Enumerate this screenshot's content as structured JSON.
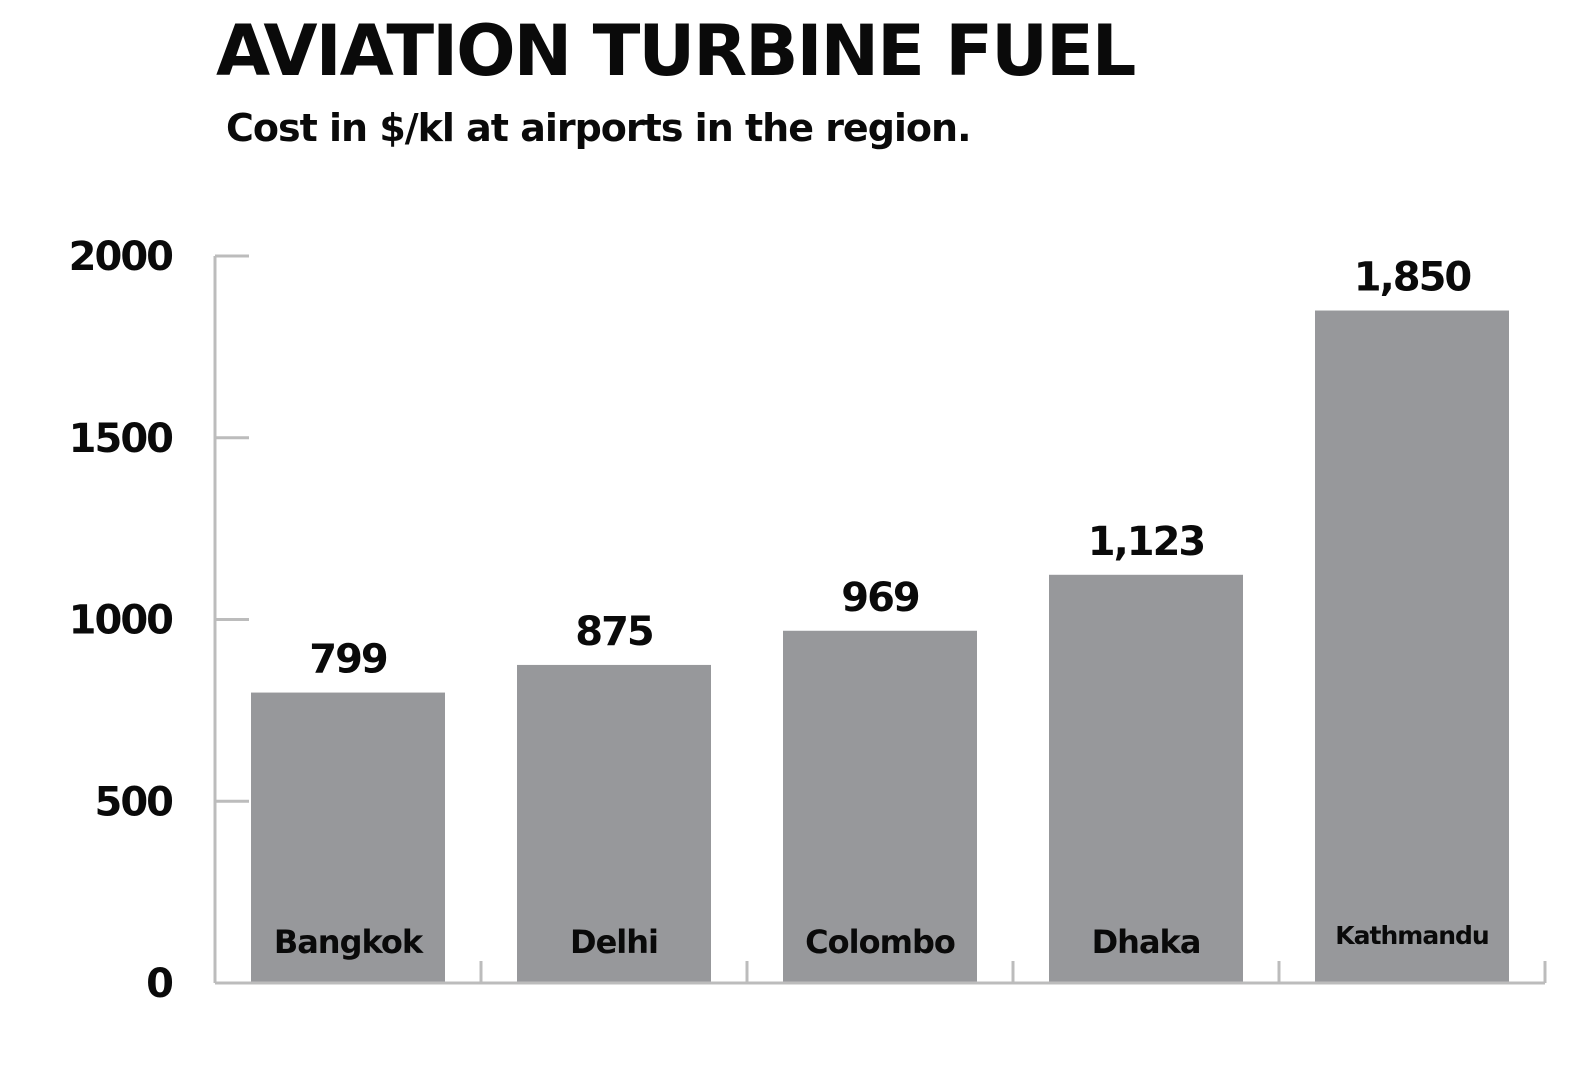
{
  "chart_data": {
    "type": "bar",
    "title": "AVIATION TURBINE FUEL",
    "subtitle": "Cost in $/kl at airports in the region.",
    "xlabel": "",
    "ylabel": "",
    "categories": [
      "Bangkok",
      "Delhi",
      "Colombo",
      "Dhaka",
      "Kathmandu"
    ],
    "values": [
      799,
      875,
      969,
      1123,
      1850
    ],
    "value_labels": [
      "799",
      "875",
      "969",
      "1,123",
      "1,850"
    ],
    "ylim": [
      0,
      2000
    ],
    "yticks": [
      0,
      500,
      1000,
      1500,
      2000
    ],
    "ytick_labels": [
      "0",
      "500",
      "1000",
      "1500",
      "2000"
    ],
    "grid": false,
    "legend": "none",
    "colors": {
      "bar": "#97989b",
      "axis": "#bcbcbc",
      "text": "#0a0a0a"
    }
  }
}
